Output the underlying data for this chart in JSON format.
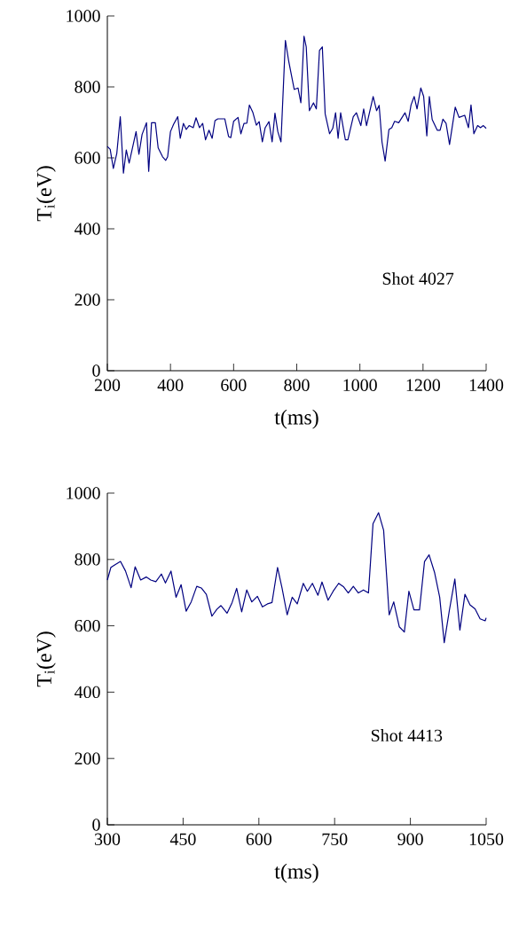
{
  "chart_data": [
    {
      "type": "line",
      "xlabel": "t(ms)",
      "ylabel": "T$_{i}$(eV)",
      "annotations": [
        "Shot 4027"
      ],
      "xlim": [
        200,
        1400
      ],
      "xticks": [
        200,
        400,
        600,
        800,
        1000,
        1200,
        1400
      ],
      "ylim": [
        0,
        1000
      ],
      "yticks": [
        0,
        200,
        400,
        600,
        800,
        1000
      ],
      "x": [
        200,
        209,
        219,
        230,
        241,
        251,
        260,
        269,
        291,
        300,
        310,
        324,
        331,
        340,
        352,
        361,
        375,
        385,
        391,
        400,
        410,
        423,
        431,
        441,
        450,
        459,
        472,
        481,
        492,
        502,
        511,
        522,
        532,
        541,
        550,
        572,
        584,
        591,
        600,
        614,
        623,
        633,
        642,
        650,
        661,
        672,
        681,
        691,
        700,
        712,
        722,
        731,
        740,
        750,
        764,
        775,
        792,
        804,
        813,
        823,
        830,
        840,
        853,
        862,
        872,
        881,
        890,
        904,
        914,
        923,
        931,
        939,
        954,
        962,
        979,
        989,
        1003,
        1012,
        1021,
        1042,
        1053,
        1061,
        1070,
        1080,
        1092,
        1101,
        1110,
        1123,
        1143,
        1153,
        1162,
        1172,
        1181,
        1193,
        1202,
        1212,
        1220,
        1229,
        1245,
        1254,
        1263,
        1273,
        1284,
        1302,
        1314,
        1332,
        1344,
        1352,
        1361,
        1373,
        1382,
        1391,
        1400
      ],
      "series": [
        {
          "color": "#000080",
          "values": [
            632,
            624,
            570,
            613,
            716,
            557,
            622,
            585,
            674,
            610,
            666,
            699,
            562,
            699,
            699,
            628,
            603,
            593,
            603,
            674,
            695,
            716,
            655,
            697,
            680,
            691,
            685,
            713,
            685,
            697,
            651,
            678,
            655,
            705,
            710,
            710,
            660,
            657,
            703,
            714,
            668,
            697,
            698,
            749,
            728,
            692,
            702,
            645,
            685,
            702,
            645,
            726,
            674,
            645,
            931,
            870,
            793,
            797,
            755,
            943,
            913,
            733,
            755,
            738,
            903,
            913,
            724,
            668,
            683,
            727,
            655,
            727,
            651,
            651,
            716,
            727,
            691,
            738,
            691,
            773,
            733,
            748,
            645,
            591,
            680,
            685,
            703,
            699,
            727,
            703,
            749,
            773,
            738,
            797,
            773,
            662,
            773,
            708,
            678,
            678,
            709,
            697,
            638,
            743,
            714,
            720,
            685,
            749,
            668,
            691,
            685,
            691,
            683
          ]
        }
      ]
    },
    {
      "type": "line",
      "xlabel": "t(ms)",
      "ylabel": "T$_{i}$(eV)",
      "annotations": [
        "Shot 4413"
      ],
      "xlim": [
        300,
        1050
      ],
      "xticks": [
        300,
        450,
        600,
        750,
        900,
        1050
      ],
      "ylim": [
        0,
        1000
      ],
      "yticks": [
        0,
        200,
        400,
        600,
        800,
        1000
      ],
      "x": [
        300,
        307,
        316,
        326,
        336,
        347,
        355,
        366,
        377,
        386,
        396,
        407,
        415,
        426,
        436,
        446,
        456,
        466,
        477,
        486,
        496,
        507,
        517,
        525,
        537,
        547,
        556,
        566,
        576,
        586,
        597,
        607,
        617,
        626,
        637,
        646,
        656,
        666,
        676,
        688,
        696,
        706,
        717,
        725,
        737,
        747,
        758,
        768,
        777,
        787,
        797,
        807,
        817,
        826,
        837,
        847,
        858,
        867,
        878,
        888,
        897,
        907,
        918,
        928,
        937,
        948,
        958,
        967,
        977,
        988,
        998,
        1008,
        1018,
        1028,
        1038,
        1048,
        1050
      ],
      "series": [
        {
          "color": "#000080",
          "values": [
            738,
            776,
            785,
            794,
            765,
            715,
            778,
            738,
            747,
            738,
            733,
            756,
            729,
            765,
            686,
            724,
            644,
            672,
            719,
            714,
            695,
            629,
            650,
            661,
            638,
            670,
            713,
            642,
            708,
            672,
            689,
            657,
            666,
            670,
            776,
            713,
            633,
            686,
            666,
            728,
            704,
            728,
            692,
            732,
            677,
            704,
            728,
            717,
            699,
            719,
            699,
            708,
            699,
            908,
            941,
            888,
            633,
            672,
            597,
            581,
            704,
            648,
            648,
            794,
            814,
            760,
            686,
            549,
            645,
            741,
            587,
            695,
            663,
            651,
            621,
            615,
            624
          ]
        }
      ]
    }
  ]
}
